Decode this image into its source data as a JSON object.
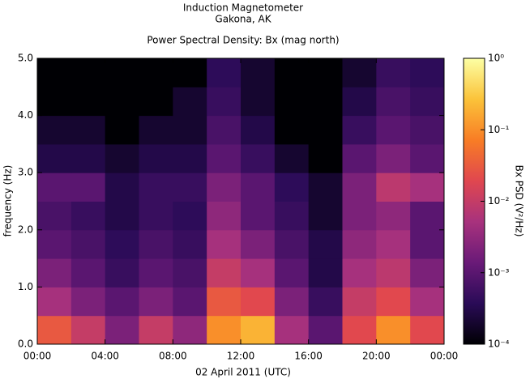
{
  "chart_data": {
    "type": "spectrogram",
    "title": "Induction Magnetometer",
    "subtitle": "Gakona, AK",
    "plot_title": "Power Spectral Density: Bx (mag north)",
    "x_label": "02 April 2011 (UTC)",
    "y_label": "frequency (Hz)",
    "colorbar_label": "Bx PSD (V²/Hz)",
    "xlim": [
      0,
      24
    ],
    "xticks": [
      {
        "value": 0,
        "label": "00:00"
      },
      {
        "value": 4,
        "label": "04:00"
      },
      {
        "value": 8,
        "label": "08:00"
      },
      {
        "value": 12,
        "label": "12:00"
      },
      {
        "value": 16,
        "label": "16:00"
      },
      {
        "value": 20,
        "label": "20:00"
      },
      {
        "value": 24,
        "label": "00:00"
      }
    ],
    "ylim": [
      0,
      5
    ],
    "yticks": [
      {
        "value": 0,
        "label": "0.0"
      },
      {
        "value": 1,
        "label": "1.0"
      },
      {
        "value": 2,
        "label": "2.0"
      },
      {
        "value": 3,
        "label": "3.0"
      },
      {
        "value": 4,
        "label": "4.0"
      },
      {
        "value": 5,
        "label": "5.0"
      }
    ],
    "clim": [
      0.0001,
      1
    ],
    "cticks": [
      {
        "value": 0.0001,
        "label": "10⁻⁴"
      },
      {
        "value": 0.001,
        "label": "10⁻³"
      },
      {
        "value": 0.01,
        "label": "10⁻²"
      },
      {
        "value": 0.1,
        "label": "10⁻¹"
      },
      {
        "value": 1,
        "label": "10⁰"
      }
    ],
    "log_color": true,
    "colormap": [
      "#000004",
      "#2a0b57",
      "#6a1a78",
      "#a8327d",
      "#e0474f",
      "#f87d25",
      "#fbc33a",
      "#fcffa4"
    ],
    "xbins": [
      0,
      2,
      4,
      6,
      8,
      10,
      12,
      14,
      16,
      18,
      20,
      22,
      24
    ],
    "ybins": [
      0,
      0.5,
      1,
      1.5,
      2,
      2.5,
      3,
      3.5,
      4,
      4.5,
      5
    ],
    "z": [
      [
        0.03,
        0.01,
        0.002,
        0.01,
        0.003,
        0.1,
        0.2,
        0.005,
        0.001,
        0.02,
        0.1,
        0.02
      ],
      [
        0.005,
        0.002,
        0.001,
        0.002,
        0.001,
        0.03,
        0.02,
        0.002,
        0.0005,
        0.01,
        0.02,
        0.005
      ],
      [
        0.002,
        0.001,
        0.0005,
        0.001,
        0.0007,
        0.01,
        0.005,
        0.001,
        0.0003,
        0.005,
        0.008,
        0.002
      ],
      [
        0.001,
        0.0007,
        0.0004,
        0.0007,
        0.0005,
        0.005,
        0.002,
        0.0007,
        0.0003,
        0.003,
        0.005,
        0.001
      ],
      [
        0.0007,
        0.0005,
        0.0003,
        0.0005,
        0.0004,
        0.003,
        0.001,
        0.0005,
        0.0002,
        0.002,
        0.003,
        0.001
      ],
      [
        0.001,
        0.001,
        0.0003,
        0.0005,
        0.0005,
        0.002,
        0.001,
        0.0004,
        0.0002,
        0.002,
        0.008,
        0.005
      ],
      [
        0.0003,
        0.0003,
        0.0002,
        0.0003,
        0.0003,
        0.001,
        0.0005,
        0.0002,
        0.0001,
        0.001,
        0.002,
        0.001
      ],
      [
        0.0002,
        0.0002,
        0.0001,
        0.0002,
        0.0002,
        0.0007,
        0.0003,
        0.0001,
        0.0001,
        0.0005,
        0.001,
        0.0007
      ],
      [
        0.0001,
        0.0001,
        0.0001,
        0.0001,
        0.0002,
        0.0005,
        0.0002,
        0.0001,
        0.0001,
        0.0003,
        0.0007,
        0.0005
      ],
      [
        0.0001,
        0.0001,
        0.0001,
        0.0001,
        0.0001,
        0.0004,
        0.0002,
        0.0001,
        0.0001,
        0.0002,
        0.0005,
        0.0004
      ]
    ]
  }
}
